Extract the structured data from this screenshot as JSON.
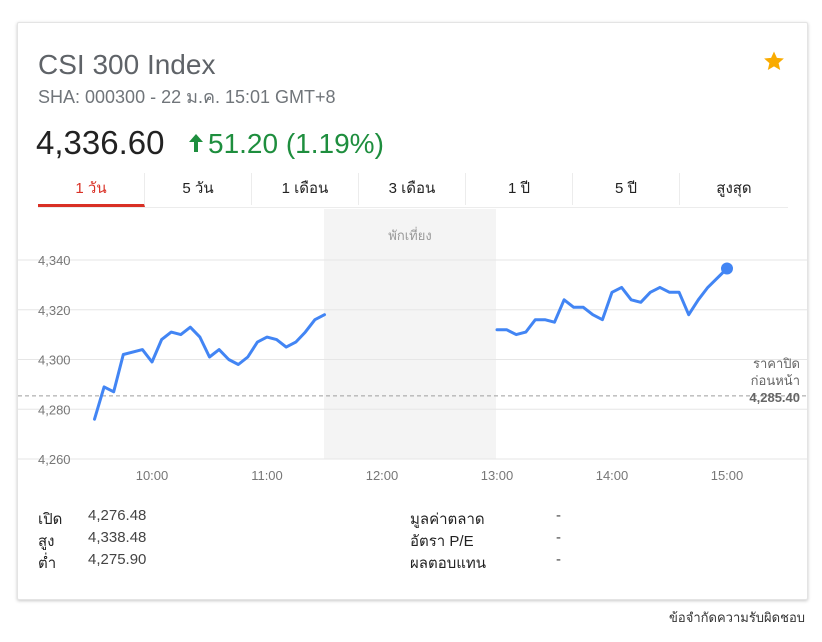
{
  "header": {
    "title": "CSI 300 Index",
    "subtitle": "SHA: 000300 - 22 ม.ค. 15:01 GMT+8",
    "star_color": "#f9ab00"
  },
  "quote": {
    "price": "4,336.60",
    "change": "51.20 (1.19%)",
    "change_color": "#1e8e3e"
  },
  "tabs": [
    {
      "label": "1 วัน",
      "active": true
    },
    {
      "label": "5 วัน"
    },
    {
      "label": "1 เดือน"
    },
    {
      "label": "3 เดือน"
    },
    {
      "label": "1 ปี"
    },
    {
      "label": "5 ปี"
    },
    {
      "label": "สูงสุด"
    }
  ],
  "chart_data": {
    "type": "line",
    "x_ticks": [
      "10:00",
      "11:00",
      "12:00",
      "13:00",
      "14:00",
      "15:00"
    ],
    "y_ticks": [
      "4,340",
      "4,320",
      "4,300",
      "4,280",
      "4,260"
    ],
    "ylim": [
      4260,
      4340
    ],
    "lunch_break_label": "พักเที่ยง",
    "prev_close_label_1": "ราคาปิด",
    "prev_close_label_2": "ก่อนหน้า",
    "prev_close_value": "4,285.40",
    "prev_close": 4285.4,
    "line_color": "#4285f4",
    "morning": [
      [
        "09:30",
        4276
      ],
      [
        "09:35",
        4289
      ],
      [
        "09:40",
        4287
      ],
      [
        "09:45",
        4302
      ],
      [
        "09:55",
        4304
      ],
      [
        "10:00",
        4299
      ],
      [
        "10:05",
        4308
      ],
      [
        "10:10",
        4311
      ],
      [
        "10:15",
        4310
      ],
      [
        "10:20",
        4313
      ],
      [
        "10:25",
        4309
      ],
      [
        "10:30",
        4301
      ],
      [
        "10:35",
        4304
      ],
      [
        "10:40",
        4300
      ],
      [
        "10:45",
        4298
      ],
      [
        "10:50",
        4301
      ],
      [
        "10:55",
        4307
      ],
      [
        "11:00",
        4309
      ],
      [
        "11:05",
        4308
      ],
      [
        "11:10",
        4305
      ],
      [
        "11:15",
        4307
      ],
      [
        "11:20",
        4311
      ],
      [
        "11:25",
        4316
      ],
      [
        "11:30",
        4318
      ]
    ],
    "afternoon": [
      [
        "13:00",
        4312
      ],
      [
        "13:05",
        4312
      ],
      [
        "13:10",
        4310
      ],
      [
        "13:15",
        4311
      ],
      [
        "13:20",
        4316
      ],
      [
        "13:25",
        4316
      ],
      [
        "13:30",
        4315
      ],
      [
        "13:35",
        4324
      ],
      [
        "13:40",
        4321
      ],
      [
        "13:45",
        4321
      ],
      [
        "13:50",
        4318
      ],
      [
        "13:55",
        4316
      ],
      [
        "14:00",
        4327
      ],
      [
        "14:05",
        4329
      ],
      [
        "14:10",
        4324
      ],
      [
        "14:15",
        4323
      ],
      [
        "14:20",
        4327
      ],
      [
        "14:25",
        4329
      ],
      [
        "14:30",
        4327
      ],
      [
        "14:35",
        4327
      ],
      [
        "14:40",
        4318
      ],
      [
        "14:45",
        4324
      ],
      [
        "14:50",
        4329
      ],
      [
        "15:00",
        4336.6
      ]
    ]
  },
  "stats": {
    "left": [
      {
        "label": "เปิด",
        "value": "4,276.48"
      },
      {
        "label": "สูง",
        "value": "4,338.48"
      },
      {
        "label": "ต่ำ",
        "value": "4,275.90"
      }
    ],
    "right": [
      {
        "label": "มูลค่าตลาด",
        "value": "-"
      },
      {
        "label": "อัตรา P/E",
        "value": "-"
      },
      {
        "label": "ผลตอบแทน",
        "value": "-"
      }
    ]
  },
  "disclaimer": "ข้อจำกัดความรับผิดชอบ"
}
